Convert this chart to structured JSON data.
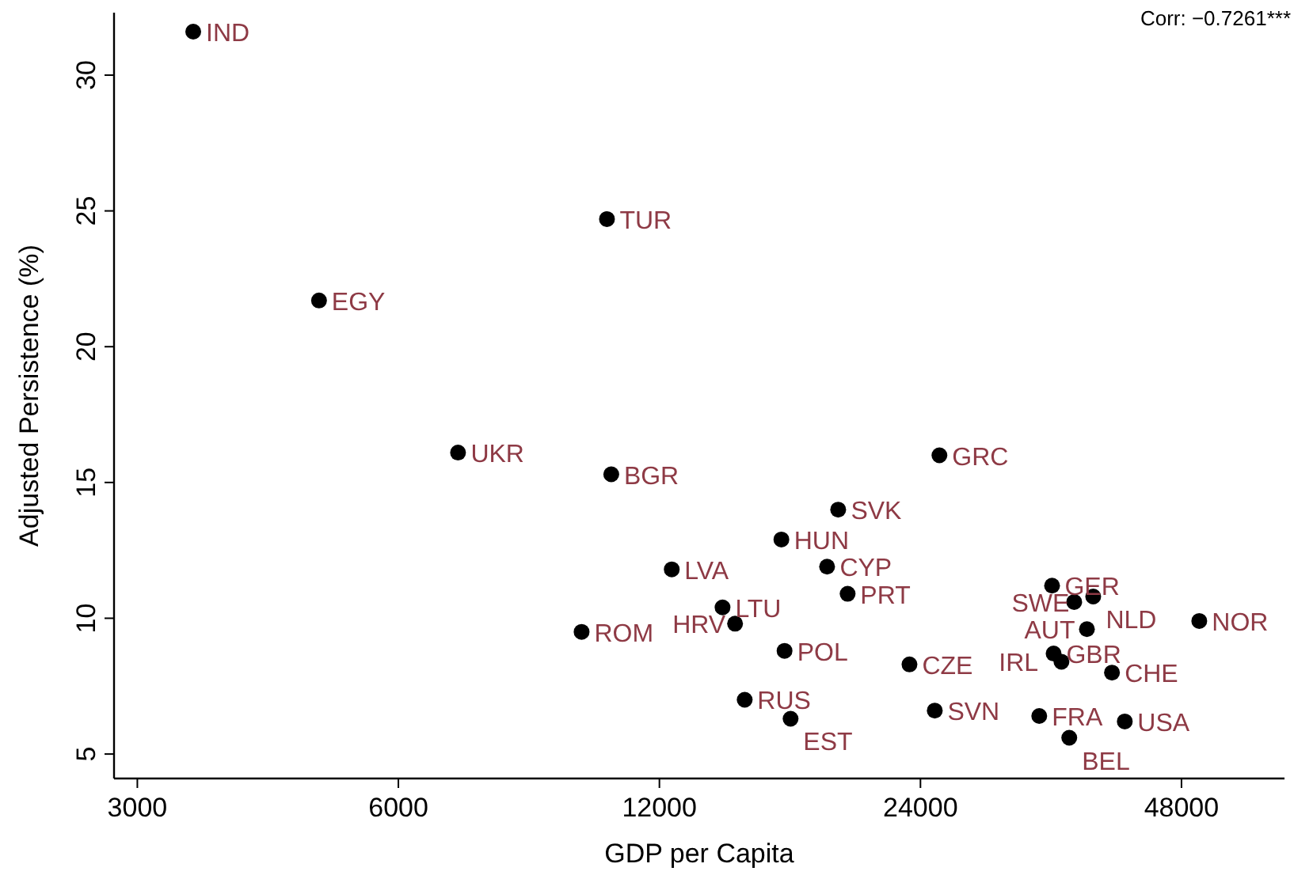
{
  "chart_data": {
    "type": "scatter",
    "xlabel": "GDP per Capita",
    "ylabel": "Adjusted Persistence (%)",
    "log": "x",
    "xlim": [
      2820,
      63100
    ],
    "xticks": [
      3000,
      6000,
      12000,
      24000,
      48000
    ],
    "ylim": [
      4.1,
      32.3
    ],
    "yticks": [
      5,
      10,
      15,
      20,
      25,
      30
    ],
    "grid": false,
    "marker": "circle",
    "series": [
      {
        "color": "#000000",
        "x": [
          3480,
          10440,
          4860,
          7030,
          10560,
          25240,
          19290,
          16590,
          12400,
          18730,
          19780,
          14190,
          14670,
          9760,
          16730,
          23310,
          15050,
          17000,
          24930,
          34040,
          37970,
          36100,
          37340,
          34180,
          34900,
          39910,
          50320,
          32900,
          41290,
          35630
        ],
        "values": [
          31.6,
          24.7,
          21.7,
          16.1,
          15.3,
          16.0,
          14.0,
          12.9,
          11.8,
          11.9,
          10.9,
          10.4,
          9.8,
          9.5,
          8.8,
          8.3,
          7.0,
          6.3,
          6.6,
          11.2,
          10.8,
          10.6,
          9.6,
          8.7,
          8.4,
          8.0,
          9.9,
          6.4,
          6.2,
          5.6
        ]
      }
    ],
    "annotations": [
      {
        "text": "IND",
        "x": 3480,
        "y": 31.6
      },
      {
        "text": "TUR",
        "x": 10440,
        "y": 24.7
      },
      {
        "text": "EGY",
        "x": 4860,
        "y": 21.7
      },
      {
        "text": "UKR",
        "x": 7030,
        "y": 16.1
      },
      {
        "text": "BGR",
        "x": 10560,
        "y": 15.3
      },
      {
        "text": "GRC",
        "x": 25240,
        "y": 16.0
      },
      {
        "text": "SVK",
        "x": 19290,
        "y": 14.0
      },
      {
        "text": "HUN",
        "x": 16590,
        "y": 12.9
      },
      {
        "text": "LVA",
        "x": 12400,
        "y": 11.8
      },
      {
        "text": "CYP",
        "x": 18730,
        "y": 11.9
      },
      {
        "text": "PRT",
        "x": 19780,
        "y": 10.9
      },
      {
        "text": "LTU",
        "x": 14190,
        "y": 10.4
      },
      {
        "text": "HRV",
        "x": 14670,
        "y": 9.8
      },
      {
        "text": "ROM",
        "x": 9760,
        "y": 9.5
      },
      {
        "text": "POL",
        "x": 16730,
        "y": 8.8
      },
      {
        "text": "CZE",
        "x": 23310,
        "y": 8.3
      },
      {
        "text": "RUS",
        "x": 15050,
        "y": 7.0
      },
      {
        "text": "EST",
        "x": 17000,
        "y": 6.3
      },
      {
        "text": "SVN",
        "x": 24930,
        "y": 6.6
      },
      {
        "text": "GER",
        "x": 34040,
        "y": 11.2
      },
      {
        "text": "NLD",
        "x": 37970,
        "y": 10.8
      },
      {
        "text": "SWE",
        "x": 36100,
        "y": 10.6
      },
      {
        "text": "AUT",
        "x": 37340,
        "y": 9.6
      },
      {
        "text": "GBR",
        "x": 34180,
        "y": 8.7
      },
      {
        "text": "IRL",
        "x": 34900,
        "y": 8.4
      },
      {
        "text": "CHE",
        "x": 39910,
        "y": 8.0
      },
      {
        "text": "NOR",
        "x": 50320,
        "y": 9.9
      },
      {
        "text": "FRA",
        "x": 32900,
        "y": 6.4
      },
      {
        "text": "USA",
        "x": 41290,
        "y": 6.2
      },
      {
        "text": "BEL",
        "x": 35630,
        "y": 5.6
      },
      "Corr: −0.7261***"
    ]
  }
}
